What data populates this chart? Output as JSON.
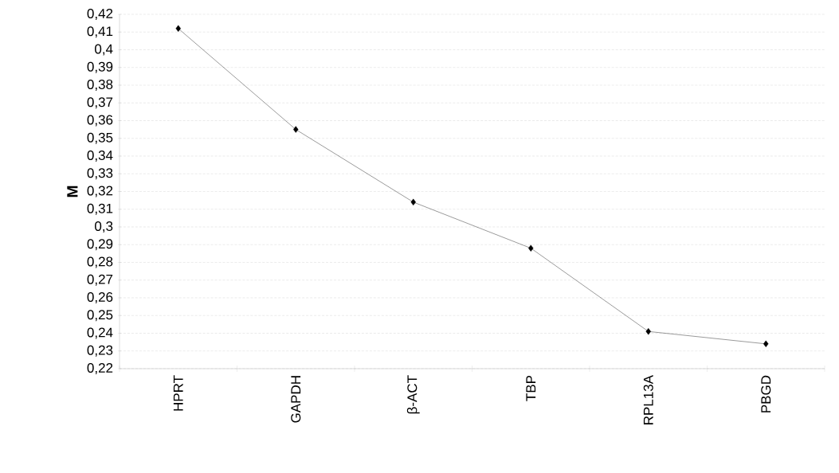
{
  "chart_data": {
    "type": "line",
    "ylabel": "M",
    "categories": [
      "HPRT",
      "GAPDH",
      "β-ACT",
      "TBP",
      "RPL13A",
      "PBGD"
    ],
    "values": [
      0.412,
      0.355,
      0.314,
      0.288,
      0.241,
      0.234
    ],
    "color": "#000000",
    "marker": "diamond",
    "line_style": "solid",
    "grid": "y",
    "ylim": [
      0.22,
      0.42
    ],
    "yticks": [
      {
        "value": 0.22,
        "label": "0,22"
      },
      {
        "value": 0.23,
        "label": "0,23"
      },
      {
        "value": 0.24,
        "label": "0,24"
      },
      {
        "value": 0.25,
        "label": "0,25"
      },
      {
        "value": 0.26,
        "label": "0,26"
      },
      {
        "value": 0.27,
        "label": "0,27"
      },
      {
        "value": 0.28,
        "label": "0,28"
      },
      {
        "value": 0.29,
        "label": "0,29"
      },
      {
        "value": 0.3,
        "label": "0,3"
      },
      {
        "value": 0.31,
        "label": "0,31"
      },
      {
        "value": 0.32,
        "label": "0,32"
      },
      {
        "value": 0.33,
        "label": "0,33"
      },
      {
        "value": 0.34,
        "label": "0,34"
      },
      {
        "value": 0.35,
        "label": "0,35"
      },
      {
        "value": 0.36,
        "label": "0,36"
      },
      {
        "value": 0.37,
        "label": "0,37"
      },
      {
        "value": 0.38,
        "label": "0,38"
      },
      {
        "value": 0.39,
        "label": "0,39"
      },
      {
        "value": 0.4,
        "label": "0,4"
      },
      {
        "value": 0.41,
        "label": "0,41"
      },
      {
        "value": 0.42,
        "label": "0,42"
      }
    ]
  }
}
